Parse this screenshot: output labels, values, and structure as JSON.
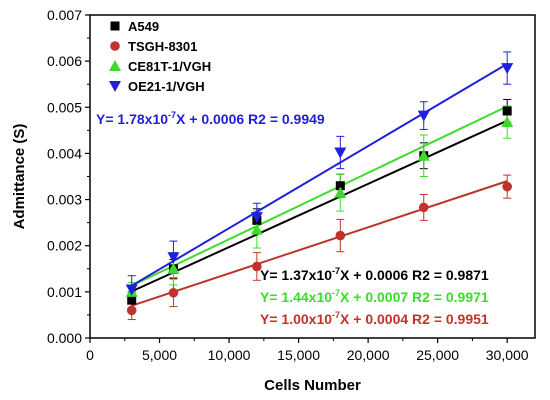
{
  "chart_data": {
    "type": "scatter",
    "xlabel": "Cells Number",
    "ylabel": "Admittance (S)",
    "xlim": [
      0,
      32000
    ],
    "ylim": [
      0,
      0.007
    ],
    "x_ticks": [
      0,
      5000,
      10000,
      15000,
      20000,
      25000,
      30000
    ],
    "x_tick_labels": [
      "0",
      "5,000",
      "10,000",
      "15,000",
      "20,000",
      "25,000",
      "30,000"
    ],
    "y_ticks": [
      0,
      0.001,
      0.002,
      0.003,
      0.004,
      0.005,
      0.006,
      0.007
    ],
    "y_tick_labels": [
      "0.000",
      "0.001",
      "0.002",
      "0.003",
      "0.004",
      "0.005",
      "0.006",
      "0.007"
    ],
    "legend_position": "top-left",
    "grid": false,
    "series": [
      {
        "name": "A549",
        "marker": "square",
        "color": "#000000",
        "x": [
          3000,
          6000,
          12000,
          18000,
          24000,
          30000
        ],
        "y": [
          0.00082,
          0.0015,
          0.00255,
          0.0033,
          0.00395,
          0.00492
        ],
        "err": [
          0.00018,
          0.0002,
          0.00025,
          0.00025,
          0.00028,
          0.00025
        ],
        "fit": {
          "slope": 1.37e-07,
          "intercept": 0.0006
        },
        "equation": {
          "base": "Y= 1.37x10",
          "exp": "-7",
          "rest": "X + 0.0006   R2 = 0.9871"
        }
      },
      {
        "name": "TSGH-8301",
        "marker": "circle",
        "color": "#c0332a",
        "x": [
          3000,
          6000,
          12000,
          18000,
          24000,
          30000
        ],
        "y": [
          0.0006,
          0.00098,
          0.00155,
          0.00222,
          0.00283,
          0.00328
        ],
        "err": [
          0.0002,
          0.0003,
          0.0003,
          0.00035,
          0.00028,
          0.00025
        ],
        "fit": {
          "slope": 1e-07,
          "intercept": 0.0004
        },
        "equation": {
          "base": "Y= 1.00x10",
          "exp": "-7",
          "rest": "X + 0.0004   R2 = 0.9951"
        }
      },
      {
        "name": "CE81T-1/VGH",
        "marker": "triangle-up",
        "color": "#3ddc2a",
        "x": [
          3000,
          6000,
          12000,
          18000,
          24000,
          30000
        ],
        "y": [
          0.001,
          0.0015,
          0.00235,
          0.00315,
          0.00395,
          0.00468
        ],
        "err": [
          0.0002,
          0.00035,
          0.0004,
          0.0004,
          0.00045,
          0.00035
        ],
        "fit": {
          "slope": 1.44e-07,
          "intercept": 0.0007
        },
        "equation": {
          "base": "Y= 1.44x10",
          "exp": "-7",
          "rest": "X + 0.0007   R2 = 0.9971"
        }
      },
      {
        "name": "OE21-1/VGH",
        "marker": "triangle-down",
        "color": "#1f1fdc",
        "x": [
          3000,
          6000,
          12000,
          18000,
          24000,
          30000
        ],
        "y": [
          0.00105,
          0.00175,
          0.00262,
          0.00402,
          0.00482,
          0.00585
        ],
        "err": [
          0.0003,
          0.00035,
          0.0003,
          0.00035,
          0.0003,
          0.00035
        ],
        "fit": {
          "slope": 1.78e-07,
          "intercept": 0.0006
        },
        "equation": {
          "base": "Y= 1.78x10",
          "exp": "-7",
          "rest": "X + 0.0006   R2 = 0.9949"
        }
      }
    ]
  }
}
